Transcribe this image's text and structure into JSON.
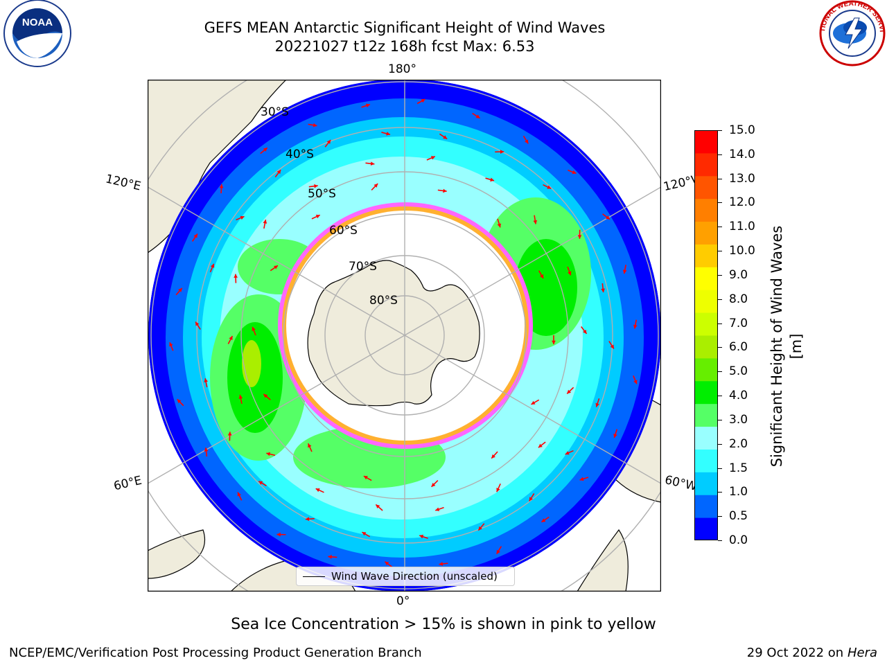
{
  "title": {
    "line1": "GEFS MEAN Antarctic Significant Height of Wind Waves",
    "line2": "20221027 t12z 168h fcst   Max: 6.53"
  },
  "logos": {
    "left": {
      "name": "noaa-logo",
      "text": "NOAA"
    },
    "right": {
      "name": "nws-logo",
      "text": "NATIONAL WEATHER SERVICE"
    }
  },
  "map": {
    "projection": "south-polar-stereographic",
    "longitude_labels": {
      "top": "180°",
      "bottom": "0°",
      "left_upper": "120°E",
      "left_lower": "60°E",
      "right_upper": "120°W",
      "right_lower": "60°W"
    },
    "latitude_labels": [
      "30°S",
      "40°S",
      "50°S",
      "60°S",
      "70°S",
      "80°S"
    ],
    "legend": "Wind Wave Direction (unscaled)",
    "colors": {
      "land": "#efecdc",
      "ice": "#ffffff",
      "ice_edge": [
        "#ff40ff",
        "#ffb030"
      ],
      "arrow": "#ff0000",
      "grid": "#b0b0b0"
    }
  },
  "colorbar": {
    "label": "Significant Height of Wind Waves [m]",
    "ticks": [
      "0.0",
      "0.5",
      "1.0",
      "1.5",
      "2.0",
      "3.0",
      "4.0",
      "5.0",
      "6.0",
      "7.0",
      "8.0",
      "9.0",
      "10.0",
      "11.0",
      "12.0",
      "13.0",
      "14.0",
      "15.0"
    ],
    "colors": [
      "#0000ff",
      "#0066ff",
      "#00ccff",
      "#33ffff",
      "#99ffff",
      "#55ff66",
      "#00ee00",
      "#66ee00",
      "#aaee00",
      "#ccff00",
      "#eeff00",
      "#ffff00",
      "#ffcc00",
      "#ffa000",
      "#ff7f00",
      "#ff5500",
      "#ff2a00",
      "#ff0000"
    ]
  },
  "note": "Sea Ice Concentration > 15% is shown in pink to yellow",
  "footer": {
    "left": "NCEP/EMC/Verification Post Processing Product Generation Branch",
    "right_prefix": "29 Oct 2022 on ",
    "right_machine": "Hera"
  }
}
